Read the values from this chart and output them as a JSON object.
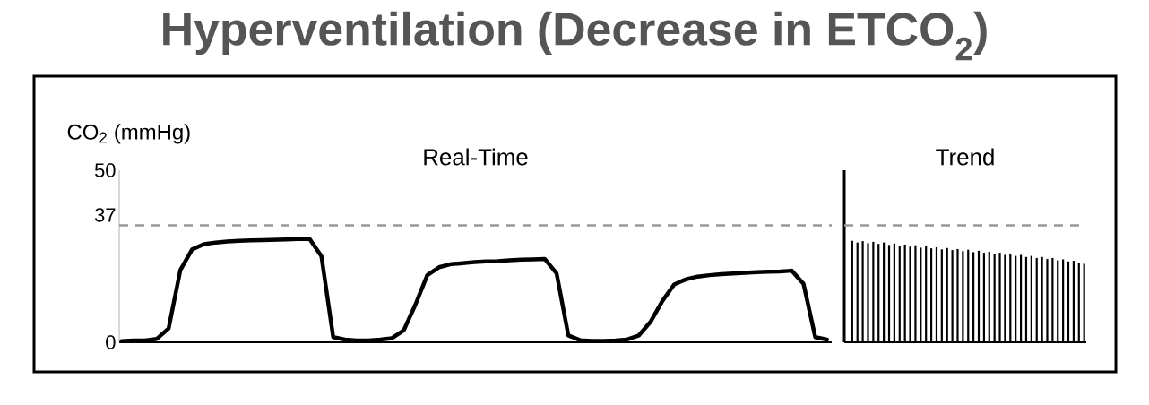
{
  "chart_data": [
    {
      "type": "line",
      "title": "Hyperventilation (Decrease in ETCO$_{2}$)",
      "subtitle": "Real-Time",
      "ylabel": "CO$_{2}$ (mmHg)",
      "categories": [
        null,
        null,
        null,
        null,
        null,
        null,
        null,
        null,
        null,
        null,
        null,
        null,
        null,
        null,
        null,
        null,
        null,
        null,
        null,
        null,
        null,
        null,
        null,
        null,
        null,
        null,
        null,
        null,
        null,
        null,
        null,
        null,
        null,
        null,
        null,
        null,
        null,
        null,
        null,
        null,
        null,
        null,
        null,
        null,
        null,
        null,
        null,
        null,
        null,
        null,
        null,
        null,
        null,
        null,
        null,
        null,
        null,
        null,
        null,
        null,
        null
      ],
      "series": [
        {
          "color": "#000000",
          "values": [
            0.3,
            0.5,
            0.5,
            1.0,
            4,
            21,
            27,
            28.5,
            29,
            29.3,
            29.5,
            29.6,
            29.7,
            29.8,
            29.9,
            30,
            30,
            25,
            1.5,
            0.8,
            0.5,
            0.5,
            0.8,
            1.2,
            3.5,
            11,
            19.5,
            21.8,
            22.7,
            23,
            23.3,
            23.5,
            23.6,
            23.8,
            24,
            24.1,
            24.2,
            20,
            2,
            0.6,
            0.4,
            0.4,
            0.5,
            0.8,
            2,
            6,
            12,
            16.8,
            18.3,
            19.1,
            19.5,
            19.8,
            20,
            20.2,
            20.4,
            20.5,
            20.6,
            20.8,
            17,
            1.5,
            0.8
          ]
        }
      ],
      "ylim": [
        0,
        50
      ],
      "yticks": [
        0,
        37,
        50
      ],
      "ref_lines": [
        {
          "axis": "y",
          "value": 34,
          "color": "#999999",
          "line_style": "dashed"
        }
      ]
    },
    {
      "type": "bar",
      "title": "Trend",
      "categories": [
        null,
        null,
        null,
        null,
        null,
        null,
        null,
        null,
        null,
        null,
        null,
        null,
        null,
        null,
        null,
        null,
        null,
        null,
        null,
        null,
        null,
        null,
        null,
        null,
        null,
        null,
        null,
        null,
        null,
        null,
        null,
        null,
        null,
        null,
        null,
        null,
        null,
        null,
        null,
        null,
        null,
        null,
        null,
        null,
        null
      ],
      "series": [
        {
          "color": "#000000",
          "values": [
            29.5,
            29.0,
            29.4,
            28.8,
            29.2,
            28.6,
            29.0,
            28.3,
            28.7,
            28.0,
            28.4,
            27.8,
            28.2,
            27.5,
            27.9,
            27.3,
            27.6,
            27.0,
            27.4,
            26.8,
            27.1,
            26.5,
            26.9,
            26.2,
            26.6,
            26.0,
            26.3,
            25.7,
            26.0,
            25.4,
            25.8,
            25.1,
            25.4,
            24.8,
            25.1,
            24.5,
            24.8,
            24.2,
            24.5,
            23.8,
            24.1,
            23.5,
            23.7,
            23.1,
            22.8
          ]
        }
      ],
      "ylim": [
        0,
        50
      ],
      "yticks": [
        0,
        37,
        50
      ],
      "tick_labels": false,
      "ref_lines": [
        {
          "axis": "y",
          "value": 34,
          "color": "#999999",
          "line_style": "dashed"
        }
      ]
    }
  ]
}
